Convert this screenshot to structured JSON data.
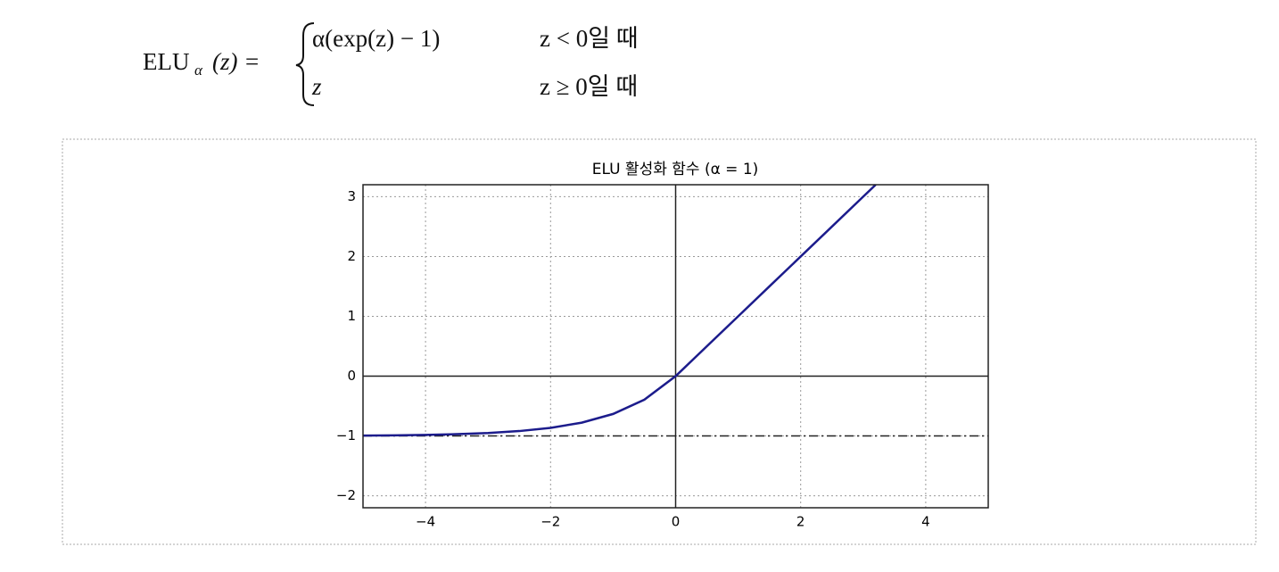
{
  "formula": {
    "name": "ELU",
    "subscript": "α",
    "args": "(z) =",
    "case1": "α(exp(z) − 1)",
    "cond1": "z < 0일 때",
    "case2": "z",
    "cond2": "z ≥ 0일 때"
  },
  "chart_data": {
    "type": "line",
    "title": "ELU 활성화 함수 (α = 1)",
    "x": [
      -5,
      -4.5,
      -4,
      -3.5,
      -3,
      -2.5,
      -2,
      -1.5,
      -1,
      -0.5,
      0,
      0.5,
      1,
      1.5,
      2,
      2.5,
      3,
      3.2
    ],
    "series": [
      {
        "color": "#1c1c8c",
        "values": [
          -0.993,
          -0.989,
          -0.982,
          -0.97,
          -0.95,
          -0.918,
          -0.865,
          -0.777,
          -0.632,
          -0.393,
          0,
          0.5,
          1,
          1.5,
          2,
          2.5,
          3,
          3.2
        ]
      }
    ],
    "xlim": [
      -5,
      5
    ],
    "ylim": [
      -2.2,
      3.2
    ],
    "xticks": [
      {
        "value": -4,
        "label": "−4"
      },
      {
        "value": -2,
        "label": "−2"
      },
      0,
      2,
      4
    ],
    "yticks": [
      {
        "value": -2,
        "label": "−2"
      },
      {
        "value": -1,
        "label": "−1"
      },
      0,
      1,
      2,
      3
    ],
    "hlines": [
      {
        "y": 0,
        "style": "solid"
      },
      {
        "y": -1,
        "style": "dashdot"
      }
    ],
    "vlines": [
      {
        "x": 0,
        "style": "solid"
      }
    ],
    "grid": true
  }
}
